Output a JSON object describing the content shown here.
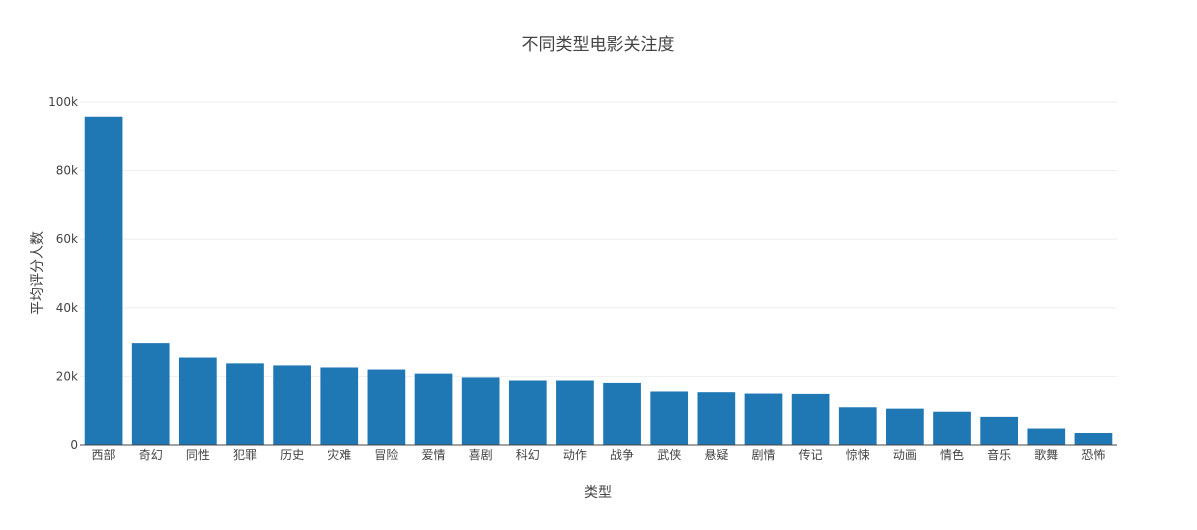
{
  "chart_data": {
    "type": "bar",
    "title": "不同类型电影关注度",
    "xlabel": "类型",
    "ylabel": "平均评分人数",
    "categories": [
      "西部",
      "奇幻",
      "同性",
      "犯罪",
      "历史",
      "灾难",
      "冒险",
      "爱情",
      "喜剧",
      "科幻",
      "动作",
      "战争",
      "武侠",
      "悬疑",
      "剧情",
      "传记",
      "惊悚",
      "动画",
      "情色",
      "音乐",
      "歌舞",
      "恐怖"
    ],
    "values": [
      95700,
      29700,
      25500,
      23800,
      23200,
      22600,
      22000,
      20800,
      19700,
      18800,
      18800,
      18100,
      15600,
      15400,
      15000,
      14900,
      11000,
      10600,
      9700,
      8200,
      4800,
      3500
    ],
    "ylim": [
      0,
      100000
    ],
    "yticks": [
      0,
      20000,
      40000,
      60000,
      80000,
      100000
    ],
    "ytick_labels": [
      "0",
      "20k",
      "40k",
      "60k",
      "80k",
      "100k"
    ],
    "bar_color": "#1f77b4",
    "grid": true
  }
}
